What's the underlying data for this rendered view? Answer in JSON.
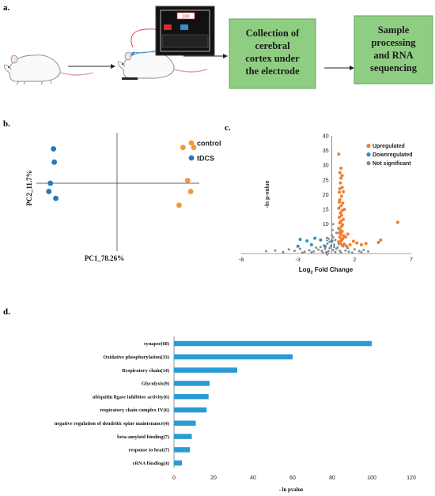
{
  "panels": {
    "a": {
      "label": "a.",
      "device_display": "200",
      "steps": [
        "Collection of cerebral cortex under the electrode",
        "Sample processing and RNA sequencing"
      ],
      "step_lines": [
        [
          "Collection of",
          "cerebral",
          "cortex under",
          "the electrode"
        ],
        [
          "Sample",
          "processing",
          "and RNA",
          "sequencing"
        ]
      ],
      "colors": {
        "box_fill": "#8fce82",
        "box_stroke": "#6aa05f"
      }
    },
    "b": {
      "label": "b."
    },
    "c": {
      "label": "c."
    },
    "d": {
      "label": "d."
    }
  },
  "chart_data": [
    {
      "panel": "b",
      "type": "scatter",
      "xlabel": "PC1_78.26%",
      "ylabel": "PC2_11.7%",
      "series": [
        {
          "name": "control",
          "color": "#f0973f",
          "points": [
            [
              0.85,
              0.78
            ],
            [
              0.99,
              0.78
            ],
            [
              0.91,
              0.06
            ],
            [
              0.95,
              -0.18
            ],
            [
              0.8,
              -0.48
            ]
          ]
        },
        {
          "name": "tDCS",
          "color": "#2877b8",
          "points": [
            [
              -0.82,
              0.75
            ],
            [
              -0.86,
              0.0
            ],
            [
              -0.88,
              -0.18
            ],
            [
              -0.79,
              -0.33
            ],
            [
              -0.81,
              0.46
            ]
          ]
        }
      ],
      "xlim": [
        -1,
        1
      ],
      "ylim": [
        -1,
        1
      ],
      "legend": "top-right"
    },
    {
      "panel": "c",
      "type": "scatter",
      "xlabel": "Log2 Fold Change",
      "xlabel_main": "Log",
      "xlabel_sub": "2",
      "xlabel_rest": " Fold Change",
      "ylabel": "-ln p-value",
      "xticks": [
        -8,
        -3,
        2,
        7
      ],
      "yticks": [
        0,
        5,
        10,
        15,
        20,
        25,
        30,
        35,
        40
      ],
      "xlim": [
        -8,
        7
      ],
      "ylim": [
        0,
        40
      ],
      "legend": "top-right",
      "series": [
        {
          "name": "Upregulated",
          "color": "#ee7d31",
          "points": [
            [
              0.6,
              33.8
            ],
            [
              0.7,
              27.5
            ],
            [
              0.8,
              25.6
            ],
            [
              0.75,
              24.0
            ],
            [
              0.9,
              22.5
            ],
            [
              0.65,
              20.8
            ],
            [
              0.85,
              19.5
            ],
            [
              0.7,
              18.3
            ],
            [
              0.95,
              17.1
            ],
            [
              0.8,
              16.2
            ],
            [
              0.6,
              15.4
            ],
            [
              0.9,
              14.6
            ],
            [
              0.75,
              13.8
            ],
            [
              0.85,
              13.0
            ],
            [
              0.65,
              12.3
            ],
            [
              1.0,
              11.6
            ],
            [
              0.8,
              11.0
            ],
            [
              0.7,
              10.4
            ],
            [
              0.95,
              9.8
            ],
            [
              0.85,
              9.2
            ],
            [
              0.6,
              8.6
            ],
            [
              0.75,
              8.0
            ],
            [
              0.9,
              7.5
            ],
            [
              0.65,
              7.0
            ],
            [
              0.8,
              6.5
            ],
            [
              1.05,
              6.0
            ],
            [
              0.7,
              5.5
            ],
            [
              0.95,
              5.0
            ],
            [
              0.85,
              4.5
            ],
            [
              0.6,
              4.0
            ],
            [
              0.75,
              3.6
            ],
            [
              1.1,
              3.2
            ],
            [
              0.9,
              2.8
            ],
            [
              1.3,
              2.5
            ],
            [
              1.6,
              3.0
            ],
            [
              1.9,
              4.2
            ],
            [
              2.2,
              3.6
            ],
            [
              2.6,
              3.0
            ],
            [
              3.0,
              3.4
            ],
            [
              4.1,
              3.8
            ],
            [
              4.3,
              4.6
            ],
            [
              5.8,
              10.6
            ],
            [
              1.2,
              5.6
            ],
            [
              1.4,
              6.6
            ],
            [
              1.0,
              21.0
            ],
            [
              0.9,
              26.5
            ],
            [
              0.7,
              22.0
            ],
            [
              1.1,
              15.0
            ],
            [
              0.8,
              29.0
            ],
            [
              0.65,
              17.5
            ]
          ]
        },
        {
          "name": "Downregulated",
          "color": "#2f8fce",
          "points": [
            [
              -2.2,
              4.3
            ],
            [
              -1.5,
              5.2
            ],
            [
              -2.8,
              4.8
            ],
            [
              -1.0,
              4.6
            ],
            [
              -3.0,
              2.5
            ],
            [
              -0.6,
              2.4
            ],
            [
              0.0,
              4.3
            ],
            [
              -1.8,
              3.0
            ]
          ]
        },
        {
          "name": "Not significant",
          "color": "#8a8a8a",
          "points": [
            [
              -0.3,
              0.8
            ],
            [
              0.1,
              1.2
            ],
            [
              0.3,
              0.5
            ],
            [
              -0.6,
              1.5
            ],
            [
              0.5,
              2.0
            ],
            [
              -0.9,
              0.9
            ],
            [
              0.2,
              3.0
            ],
            [
              -0.1,
              2.6
            ],
            [
              0.4,
              1.6
            ],
            [
              -0.5,
              0.4
            ],
            [
              0.7,
              0.9
            ],
            [
              -1.2,
              1.3
            ],
            [
              1.2,
              1.0
            ],
            [
              -1.6,
              0.7
            ],
            [
              1.5,
              0.6
            ],
            [
              -2.0,
              1.1
            ],
            [
              2.0,
              1.4
            ],
            [
              -2.4,
              0.6
            ],
            [
              2.4,
              0.8
            ],
            [
              -2.8,
              1.6
            ],
            [
              2.8,
              1.2
            ],
            [
              -3.3,
              0.9
            ],
            [
              3.2,
              0.7
            ],
            [
              -3.8,
              1.4
            ],
            [
              -4.3,
              0.5
            ],
            [
              -5.0,
              1.0
            ],
            [
              -5.8,
              0.8
            ],
            [
              -0.2,
              4.0
            ],
            [
              0.1,
              5.5
            ],
            [
              -0.4,
              3.4
            ],
            [
              0.3,
              4.6
            ],
            [
              0.0,
              6.2
            ],
            [
              -0.7,
              2.8
            ],
            [
              0.6,
              3.2
            ],
            [
              -1.0,
              2.2
            ],
            [
              1.0,
              2.4
            ],
            [
              -1.4,
              2.0
            ],
            [
              1.4,
              1.8
            ],
            [
              -0.2,
              1.8
            ],
            [
              0.2,
              2.2
            ],
            [
              -0.8,
              0.3
            ],
            [
              0.8,
              0.3
            ],
            [
              -1.8,
              0.4
            ],
            [
              1.8,
              0.3
            ],
            [
              -2.6,
              0.3
            ],
            [
              2.6,
              0.4
            ],
            [
              0.4,
              7.0
            ],
            [
              -0.3,
              5.0
            ],
            [
              0.05,
              8.0
            ],
            [
              0.1,
              10.0
            ]
          ]
        }
      ]
    },
    {
      "panel": "d",
      "type": "bar",
      "orientation": "horizontal",
      "xlabel": "- ln pvalue",
      "xticks": [
        0,
        20,
        40,
        60,
        80,
        100,
        120
      ],
      "xlim": [
        0,
        120
      ],
      "color": "#2b9bd6",
      "categories": [
        "synapse(68)",
        "Oxidative phosphorylation(33)",
        "Respiratory chain(14)",
        "Glycolysis(9)",
        "ubiquitin ligase inhibitor activity(6)",
        "respiratory chain complex IV(6)",
        "negative regulation of dendritic spine maintenance(4)",
        "beta-amyloid binding(7)",
        "response to heat(7)",
        "rRNA binding(4)"
      ],
      "values": [
        100,
        60,
        32,
        18,
        17.5,
        16.5,
        11,
        9,
        8,
        4
      ]
    }
  ]
}
